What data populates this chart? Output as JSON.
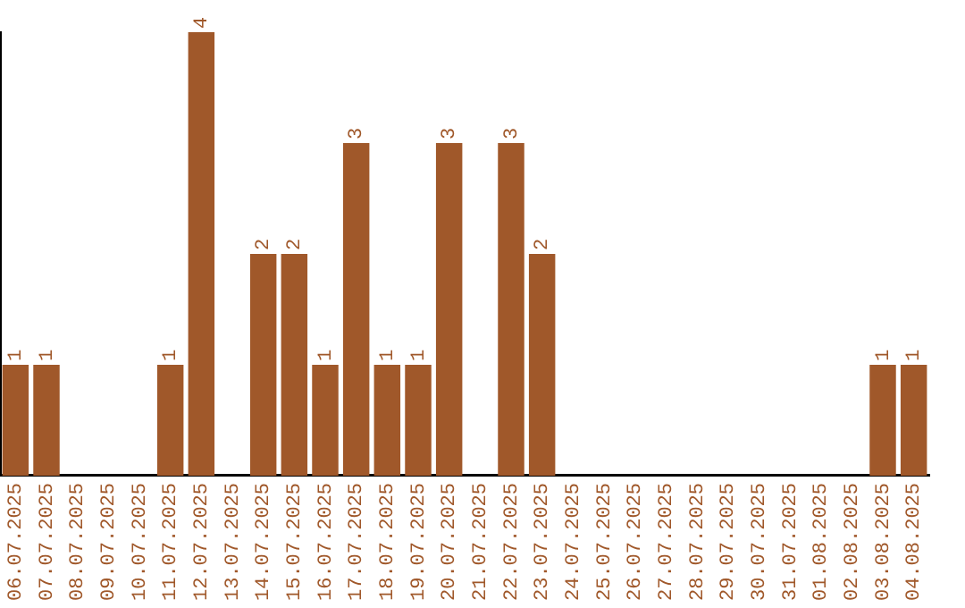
{
  "chart_data": {
    "type": "bar",
    "categories": [
      "06.07.2025",
      "07.07.2025",
      "08.07.2025",
      "09.07.2025",
      "10.07.2025",
      "11.07.2025",
      "12.07.2025",
      "13.07.2025",
      "14.07.2025",
      "15.07.2025",
      "16.07.2025",
      "17.07.2025",
      "18.07.2025",
      "19.07.2025",
      "20.07.2025",
      "21.07.2025",
      "22.07.2025",
      "23.07.2025",
      "24.07.2025",
      "25.07.2025",
      "26.07.2025",
      "27.07.2025",
      "28.07.2025",
      "29.07.2025",
      "30.07.2025",
      "31.07.2025",
      "01.08.2025",
      "02.08.2025",
      "03.08.2025",
      "04.08.2025"
    ],
    "values": [
      1,
      1,
      0,
      0,
      0,
      1,
      4,
      0,
      2,
      2,
      1,
      3,
      1,
      1,
      3,
      0,
      3,
      2,
      0,
      0,
      0,
      0,
      0,
      0,
      0,
      0,
      0,
      0,
      1,
      1
    ],
    "value_labels": [
      "1",
      "1",
      null,
      null,
      null,
      "1",
      "4",
      null,
      "2",
      "2",
      "1",
      "3",
      "1",
      "1",
      "3",
      null,
      "3",
      "2",
      null,
      null,
      null,
      null,
      null,
      null,
      null,
      null,
      null,
      null,
      "1",
      "1"
    ],
    "color": "#a0582a",
    "grid": false,
    "tick_labels": "x"
  }
}
